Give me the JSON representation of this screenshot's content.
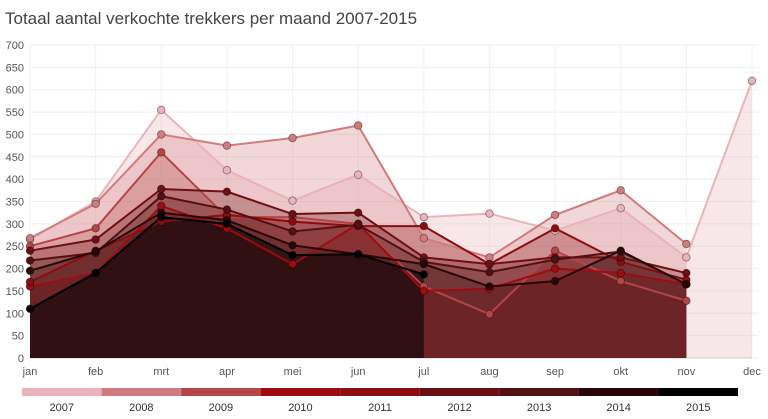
{
  "chart_data": {
    "type": "area",
    "title": "Totaal aantal verkochte trekkers per maand 2007-2015",
    "xlabel": "",
    "ylabel": "",
    "categories": [
      "jan",
      "feb",
      "mrt",
      "apr",
      "mei",
      "jun",
      "jul",
      "aug",
      "sep",
      "okt",
      "nov",
      "dec"
    ],
    "ylim": [
      0,
      700
    ],
    "yticks": [
      0,
      50,
      100,
      150,
      200,
      250,
      300,
      350,
      400,
      450,
      500,
      550,
      600,
      650,
      700
    ],
    "grid": true,
    "legend_position": "bottom",
    "series": [
      {
        "name": "2007",
        "color": "#e8b4ba",
        "values": [
          265,
          350,
          555,
          420,
          352,
          410,
          315,
          323,
          285,
          335,
          225,
          620
        ]
      },
      {
        "name": "2008",
        "color": "#d07b7d",
        "values": [
          268,
          345,
          500,
          475,
          492,
          520,
          268,
          225,
          320,
          375,
          255,
          null
        ]
      },
      {
        "name": "2009",
        "color": "#b54447",
        "values": [
          250,
          290,
          460,
          315,
          315,
          300,
          160,
          98,
          240,
          172,
          128,
          null
        ]
      },
      {
        "name": "2010",
        "color": "#9e0c12",
        "values": [
          160,
          190,
          340,
          290,
          210,
          300,
          150,
          155,
          200,
          190,
          165,
          null
        ]
      },
      {
        "name": "2011",
        "color": "#8c0c0f",
        "values": [
          170,
          240,
          305,
          320,
          305,
          295,
          295,
          210,
          290,
          215,
          175,
          null
        ]
      },
      {
        "name": "2012",
        "color": "#6c1013",
        "values": [
          240,
          265,
          378,
          372,
          322,
          325,
          225,
          210,
          225,
          225,
          190,
          null
        ]
      },
      {
        "name": "2013",
        "color": "#531012",
        "values": [
          218,
          235,
          362,
          332,
          283,
          298,
          215,
          192,
          220,
          238,
          165,
          null
        ]
      },
      {
        "name": "2014",
        "color": "#2a0608",
        "values": [
          195,
          238,
          325,
          308,
          252,
          232,
          210,
          160,
          172,
          240,
          165,
          null
        ]
      },
      {
        "name": "2015",
        "color": "#000000",
        "values": [
          110,
          190,
          315,
          300,
          230,
          232,
          187,
          null,
          null,
          null,
          null,
          null
        ]
      }
    ]
  }
}
